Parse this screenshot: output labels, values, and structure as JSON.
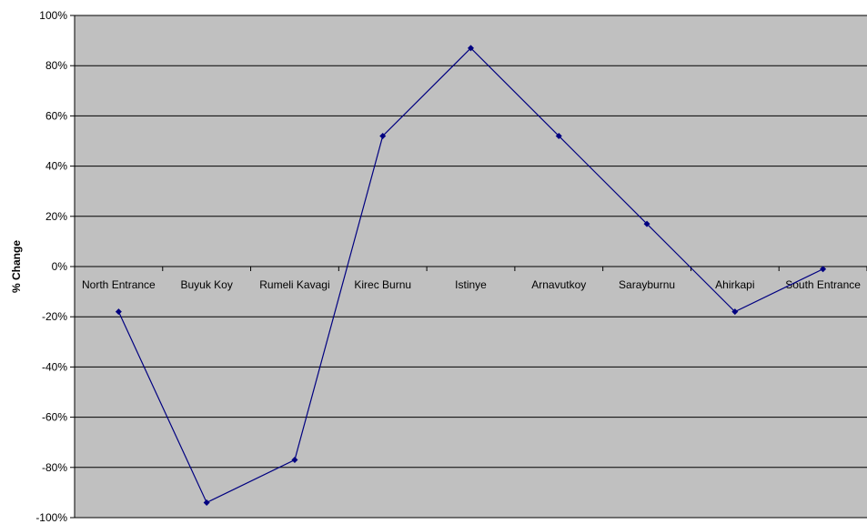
{
  "chart_data": {
    "type": "line",
    "categories": [
      "North Entrance",
      "Buyuk Koy",
      "Rumeli Kavagi",
      "Kirec Burnu",
      "Istinye",
      "Arnavutkoy",
      "Sarayburnu",
      "Ahirkapi",
      "South Entrance"
    ],
    "series": [
      {
        "values": [
          -18,
          -94,
          -77,
          52,
          87,
          52,
          17,
          -18,
          -1
        ]
      }
    ],
    "ylabel": "% Change",
    "ylim": [
      -100,
      100
    ],
    "yticks": [
      "100%",
      "80%",
      "60%",
      "40%",
      "20%",
      "0%",
      "-20%",
      "-40%",
      "-60%",
      "-80%",
      "-100%"
    ],
    "grid": true,
    "colors": {
      "plot_bg": "#c0c0c0",
      "line": "#000080",
      "grid": "#000000"
    }
  }
}
